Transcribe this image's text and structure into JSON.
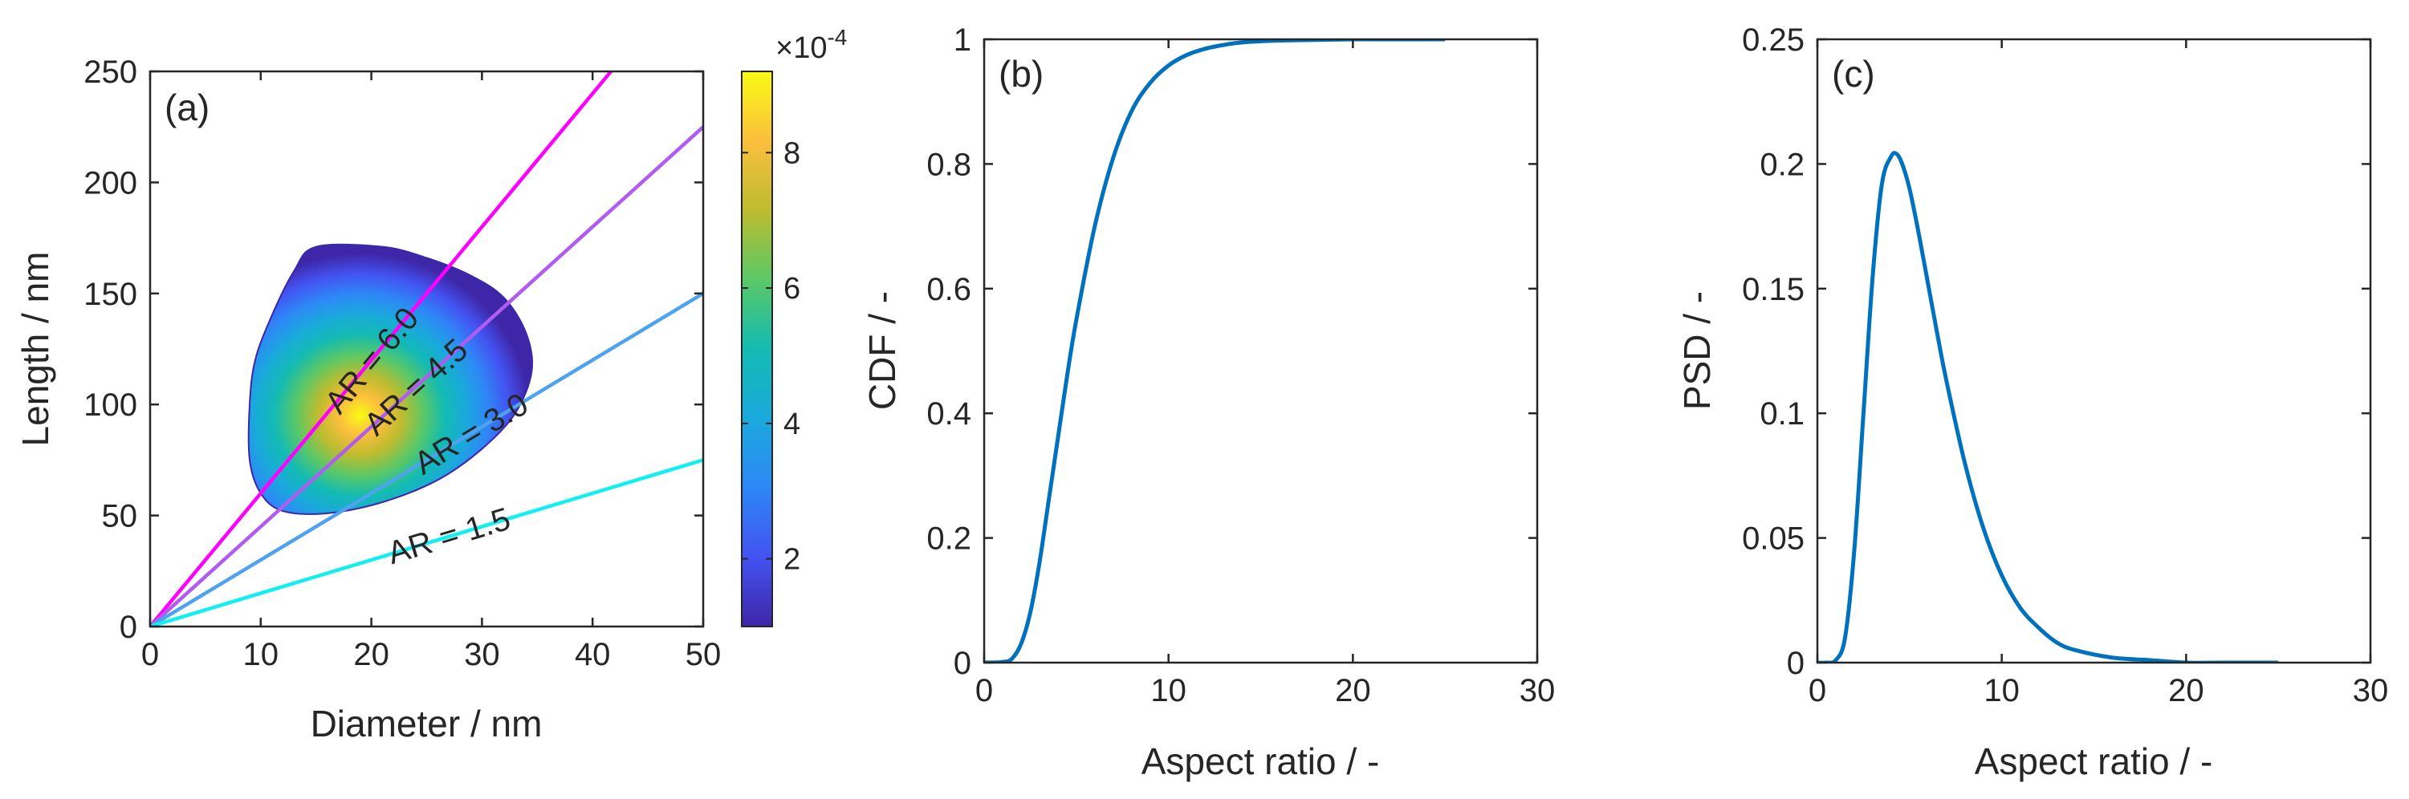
{
  "figure": {
    "background": "#ffffff",
    "axis_color": "#262626"
  },
  "chart_data": [
    {
      "id": "a",
      "type": "contour",
      "panel_label": "(a)",
      "xlabel": "Diameter / nm",
      "ylabel": "Length / nm",
      "xlim": [
        0,
        50
      ],
      "ylim": [
        0,
        250
      ],
      "xticks": [
        "0",
        "10",
        "20",
        "30",
        "40",
        "50"
      ],
      "yticks": [
        "0",
        "50",
        "100",
        "150",
        "200",
        "250"
      ],
      "density": {
        "peak": [
          19,
          95
        ],
        "zmax": 0.00092,
        "zmin": 0.0001,
        "outline": [
          [
            15,
            171
          ],
          [
            21,
            171
          ],
          [
            25,
            166
          ],
          [
            29,
            158
          ],
          [
            32,
            148
          ],
          [
            34,
            132
          ],
          [
            34.5,
            115
          ],
          [
            33,
            96
          ],
          [
            30,
            80
          ],
          [
            26,
            66
          ],
          [
            21,
            56
          ],
          [
            16,
            51
          ],
          [
            12,
            52
          ],
          [
            10,
            60
          ],
          [
            9,
            75
          ],
          [
            9,
            100
          ],
          [
            9.5,
            120
          ],
          [
            11,
            140
          ],
          [
            13,
            160
          ]
        ]
      },
      "lines": [
        {
          "name": "AR = 6.0",
          "ratio": 6.0,
          "color": "#ff00ff",
          "label_at": [
            20,
            120
          ]
        },
        {
          "name": "AR = 4.5",
          "ratio": 4.5,
          "color": "#b05cf0",
          "label_at": [
            24,
            108
          ]
        },
        {
          "name": "AR = 3.0",
          "ratio": 3.0,
          "color": "#4ea3ee",
          "label_at": [
            29,
            87
          ]
        },
        {
          "name": "AR = 1.5",
          "ratio": 1.5,
          "color": "#11f0f0",
          "label_at": [
            27,
            41
          ]
        }
      ],
      "colorbar": {
        "range": [
          0.0001,
          0.00092
        ],
        "ticks": [
          {
            "value": 2,
            "label": "2"
          },
          {
            "value": 4,
            "label": "4"
          },
          {
            "value": 6,
            "label": "6"
          },
          {
            "value": 8,
            "label": "8"
          }
        ],
        "multiplier_base": "×10",
        "multiplier_exp": "-4",
        "colormap": [
          "#3e26a8",
          "#4353f1",
          "#2e87f7",
          "#1aa9dc",
          "#13bbb2",
          "#5bc866",
          "#bdbc2f",
          "#fbbe3d",
          "#f9fb15"
        ]
      }
    },
    {
      "id": "b",
      "type": "line",
      "panel_label": "(b)",
      "xlabel": "Aspect ratio / -",
      "ylabel": "CDF / -",
      "xlim": [
        0,
        30
      ],
      "ylim": [
        0,
        1
      ],
      "xticks": [
        "0",
        "10",
        "20",
        "30"
      ],
      "yticks": [
        "0",
        "0.2",
        "0.4",
        "0.6",
        "0.8",
        "1"
      ],
      "series": [
        {
          "name": "CDF",
          "color": "#0072bd",
          "x": [
            0,
            1,
            1.5,
            2,
            2.5,
            3,
            3.5,
            4,
            4.5,
            5,
            6,
            7,
            8,
            9,
            10,
            11,
            12,
            13,
            14,
            16,
            18,
            20,
            22,
            25
          ],
          "y": [
            0,
            0.001,
            0.006,
            0.03,
            0.08,
            0.16,
            0.26,
            0.36,
            0.46,
            0.55,
            0.7,
            0.81,
            0.885,
            0.93,
            0.958,
            0.975,
            0.985,
            0.991,
            0.995,
            0.998,
            0.999,
            1.0,
            1.0,
            1.0
          ]
        }
      ]
    },
    {
      "id": "c",
      "type": "line",
      "panel_label": "(c)",
      "xlabel": "Aspect ratio / -",
      "ylabel": "PSD / -",
      "xlim": [
        0,
        30
      ],
      "ylim": [
        0,
        0.25
      ],
      "xticks": [
        "0",
        "10",
        "20",
        "30"
      ],
      "yticks": [
        "0",
        "0.05",
        "0.1",
        "0.15",
        "0.2",
        "0.25"
      ],
      "series": [
        {
          "name": "PSD",
          "color": "#0072bd",
          "x": [
            0,
            0.5,
            1,
            1.5,
            2,
            2.5,
            3,
            3.5,
            4,
            4.3,
            4.6,
            5,
            5.5,
            6,
            6.5,
            7,
            8,
            9,
            10,
            11,
            12,
            13,
            14,
            16,
            18,
            20,
            22,
            25
          ],
          "y": [
            0,
            0.0,
            0.001,
            0.01,
            0.045,
            0.1,
            0.155,
            0.192,
            0.203,
            0.204,
            0.2,
            0.19,
            0.172,
            0.152,
            0.132,
            0.113,
            0.08,
            0.054,
            0.035,
            0.022,
            0.014,
            0.008,
            0.005,
            0.002,
            0.001,
            0.0,
            0.0,
            0.0
          ]
        }
      ]
    }
  ]
}
